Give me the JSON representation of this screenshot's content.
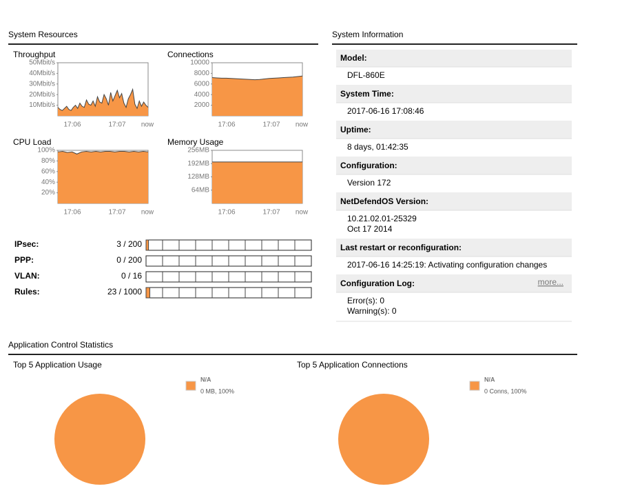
{
  "system_resources": {
    "title": "System Resources",
    "charts": [
      {
        "type": "area",
        "title": "Throughput",
        "color": "#f79646",
        "ylim": [
          0,
          50
        ],
        "yticks": [
          {
            "value": 10,
            "label": "10Mbit/s"
          },
          {
            "value": 20,
            "label": "20Mbit/s"
          },
          {
            "value": 30,
            "label": "30Mbit/s"
          },
          {
            "value": 40,
            "label": "40Mbit/s"
          },
          {
            "value": 50,
            "label": "50Mbit/s"
          }
        ],
        "xlabels": [
          "17:06",
          "17:07",
          "now"
        ],
        "values": [
          8,
          6,
          5,
          7,
          9,
          6,
          5,
          8,
          10,
          7,
          12,
          9,
          8,
          15,
          11,
          10,
          14,
          9,
          18,
          13,
          12,
          20,
          16,
          10,
          22,
          14,
          19,
          24,
          17,
          21,
          12,
          8,
          16,
          20,
          25,
          11,
          7,
          14,
          9,
          13,
          10,
          8
        ]
      },
      {
        "type": "area",
        "title": "Connections",
        "color": "#f79646",
        "ylim": [
          0,
          10000
        ],
        "yticks": [
          2000,
          4000,
          6000,
          8000,
          10000
        ],
        "xlabels": [
          "17:06",
          "17:07",
          "now"
        ],
        "values": [
          7200,
          7150,
          7100,
          7100,
          7050,
          7000,
          6950,
          6900,
          6850,
          6800,
          6850,
          6950,
          7050,
          7100,
          7150,
          7200,
          7250,
          7300,
          7400,
          7500
        ]
      },
      {
        "type": "area",
        "title": "CPU Load",
        "color": "#f79646",
        "ylim": [
          0,
          100
        ],
        "yticks": [
          {
            "value": 20,
            "label": "20%"
          },
          {
            "value": 40,
            "label": "40%"
          },
          {
            "value": 60,
            "label": "60%"
          },
          {
            "value": 80,
            "label": "80%"
          },
          {
            "value": 100,
            "label": "100%"
          }
        ],
        "xlabels": [
          "17:06",
          "17:07",
          "now"
        ],
        "values": [
          97,
          98,
          96,
          97,
          93,
          97,
          98,
          97,
          98,
          97,
          98,
          98,
          97,
          98,
          98,
          97,
          98,
          97,
          98,
          97
        ]
      },
      {
        "type": "area",
        "title": "Memory Usage",
        "color": "#f79646",
        "ylim": [
          0,
          256
        ],
        "yticks": [
          {
            "value": 64,
            "label": "64MB"
          },
          {
            "value": 128,
            "label": "128MB"
          },
          {
            "value": 192,
            "label": "192MB"
          },
          {
            "value": 256,
            "label": "256MB"
          }
        ],
        "xlabels": [
          "17:06",
          "17:07",
          "now"
        ],
        "values": [
          200,
          200,
          200,
          200,
          200,
          200,
          200,
          200,
          200,
          200,
          200,
          200,
          200,
          200,
          200,
          200,
          200,
          200,
          200,
          200
        ]
      }
    ],
    "usage": [
      {
        "label": "IPsec:",
        "text": "3 / 200",
        "used": 3,
        "max": 200
      },
      {
        "label": "PPP:",
        "text": "0 / 200",
        "used": 0,
        "max": 200
      },
      {
        "label": "VLAN:",
        "text": "0 / 16",
        "used": 0,
        "max": 16
      },
      {
        "label": "Rules:",
        "text": "23 / 1000",
        "used": 23,
        "max": 1000
      }
    ]
  },
  "system_information": {
    "title": "System Information",
    "items": [
      {
        "label": "Model:",
        "lines": [
          "DFL-860E"
        ]
      },
      {
        "label": "System Time:",
        "lines": [
          "2017-06-16 17:08:46"
        ]
      },
      {
        "label": "Uptime:",
        "lines": [
          "8 days, 01:42:35"
        ]
      },
      {
        "label": "Configuration:",
        "lines": [
          "Version 172"
        ]
      },
      {
        "label": "NetDefendOS Version:",
        "lines": [
          "10.21.02.01-25329",
          "Oct 17 2014"
        ]
      },
      {
        "label": "Last restart or reconfiguration:",
        "lines": [
          "2017-06-16 14:25:19: Activating configuration changes"
        ]
      },
      {
        "label": "Configuration Log:",
        "link": "more...",
        "lines": [
          "Error(s): 0",
          "Warning(s): 0"
        ]
      }
    ]
  },
  "application_control": {
    "title": "Application Control Statistics",
    "charts": [
      {
        "type": "pie",
        "title": "Top 5 Application Usage",
        "categories": [
          "N/A"
        ],
        "values": [
          100
        ],
        "value_labels": [
          "0 MB, 100%"
        ],
        "colors": [
          "#f79646"
        ]
      },
      {
        "type": "pie",
        "title": "Top 5 Application Connections",
        "categories": [
          "N/A"
        ],
        "values": [
          100
        ],
        "value_labels": [
          "0 Conns, 100%"
        ],
        "colors": [
          "#f79646"
        ]
      }
    ]
  }
}
